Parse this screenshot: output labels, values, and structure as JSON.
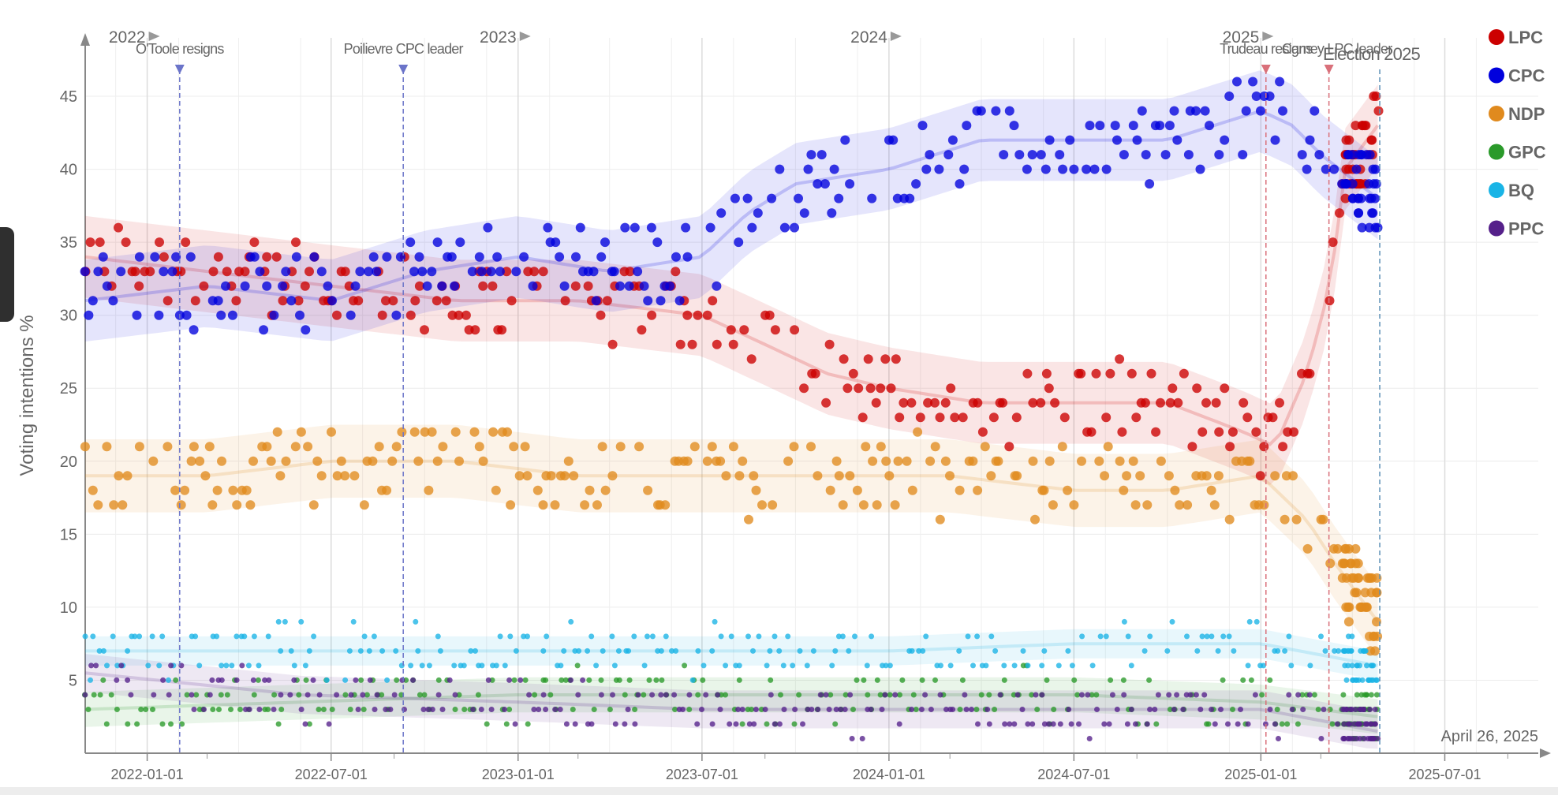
{
  "chart_data": {
    "type": "scatter",
    "ylabel": "Voting intentions %",
    "xlabel": "",
    "ylim": [
      0,
      49
    ],
    "xlim": [
      "2021-11-01",
      "2025-10-01"
    ],
    "y_ticks": [
      5,
      10,
      15,
      20,
      25,
      30,
      35,
      40,
      45
    ],
    "x_ticks": [
      "2022-01-01",
      "2022-07-01",
      "2023-01-01",
      "2023-07-01",
      "2024-01-01",
      "2024-07-01",
      "2025-01-01",
      "2025-07-01"
    ],
    "year_markers": [
      {
        "label": "2022",
        "date": "2022-01-01"
      },
      {
        "label": "2023",
        "date": "2023-01-01"
      },
      {
        "label": "2024",
        "date": "2024-01-01"
      },
      {
        "label": "2025",
        "date": "2025-01-01"
      }
    ],
    "events": [
      {
        "label": "O'Toole resigns",
        "date": "2022-02-02",
        "color": "#6b74c9"
      },
      {
        "label": "Poilievre CPC leader",
        "date": "2022-09-10",
        "color": "#6b74c9"
      },
      {
        "label": "Trudeau resigns",
        "date": "2025-01-06",
        "color": "#d9707a"
      },
      {
        "label": "Carney LPC leader",
        "date": "2025-03-09",
        "color": "#d9707a"
      },
      {
        "label": "Election 2025",
        "date": "2025-04-28",
        "color": "#5b8fb5"
      }
    ],
    "date_note": "April 26, 2025",
    "grid": true,
    "legend_position": "top-right",
    "series": [
      {
        "name": "LPC",
        "color": "#cc0000",
        "trend": [
          [
            "2021-11-01",
            34
          ],
          [
            "2022-03-01",
            33
          ],
          [
            "2022-07-01",
            32
          ],
          [
            "2022-11-01",
            31
          ],
          [
            "2023-03-01",
            31
          ],
          [
            "2023-07-01",
            30
          ],
          [
            "2023-09-01",
            28
          ],
          [
            "2023-11-01",
            26
          ],
          [
            "2024-01-01",
            25
          ],
          [
            "2024-04-01",
            24
          ],
          [
            "2024-07-01",
            24
          ],
          [
            "2024-10-01",
            24
          ],
          [
            "2024-12-15",
            22
          ],
          [
            "2025-01-15",
            21
          ],
          [
            "2025-02-15",
            26
          ],
          [
            "2025-03-10",
            32
          ],
          [
            "2025-03-25",
            40
          ],
          [
            "2025-04-26",
            43
          ]
        ]
      },
      {
        "name": "CPC",
        "color": "#0000dd",
        "trend": [
          [
            "2021-11-01",
            31
          ],
          [
            "2022-03-01",
            32
          ],
          [
            "2022-07-01",
            31
          ],
          [
            "2022-10-01",
            33
          ],
          [
            "2023-01-01",
            34
          ],
          [
            "2023-04-01",
            33
          ],
          [
            "2023-07-01",
            34
          ],
          [
            "2023-08-15",
            37
          ],
          [
            "2023-10-01",
            39
          ],
          [
            "2024-01-01",
            40
          ],
          [
            "2024-04-01",
            42
          ],
          [
            "2024-07-01",
            42
          ],
          [
            "2024-10-01",
            42
          ],
          [
            "2025-01-01",
            44
          ],
          [
            "2025-02-01",
            43
          ],
          [
            "2025-03-01",
            41
          ],
          [
            "2025-04-26",
            38
          ]
        ]
      },
      {
        "name": "NDP",
        "color": "#e08a1e",
        "trend": [
          [
            "2021-11-01",
            19
          ],
          [
            "2022-03-01",
            19
          ],
          [
            "2022-07-01",
            20
          ],
          [
            "2022-11-01",
            20
          ],
          [
            "2023-03-01",
            19
          ],
          [
            "2023-07-01",
            19
          ],
          [
            "2023-11-01",
            19
          ],
          [
            "2024-03-01",
            19
          ],
          [
            "2024-07-01",
            18
          ],
          [
            "2024-10-01",
            18
          ],
          [
            "2025-01-01",
            19
          ],
          [
            "2025-02-15",
            16
          ],
          [
            "2025-03-15",
            13
          ],
          [
            "2025-04-26",
            9
          ]
        ]
      },
      {
        "name": "GPC",
        "color": "#2a9a2a",
        "trend": [
          [
            "2021-11-01",
            3
          ],
          [
            "2022-06-01",
            3.5
          ],
          [
            "2023-01-01",
            4
          ],
          [
            "2023-07-01",
            4
          ],
          [
            "2024-01-01",
            4
          ],
          [
            "2024-07-01",
            4
          ],
          [
            "2025-01-01",
            3.5
          ],
          [
            "2025-04-26",
            2.5
          ]
        ]
      },
      {
        "name": "BQ",
        "color": "#19b4e6",
        "trend": [
          [
            "2021-11-01",
            7
          ],
          [
            "2022-06-01",
            7
          ],
          [
            "2023-01-01",
            7
          ],
          [
            "2023-07-01",
            7
          ],
          [
            "2024-01-01",
            7
          ],
          [
            "2024-07-01",
            7.5
          ],
          [
            "2025-01-01",
            7.5
          ],
          [
            "2025-04-26",
            6
          ]
        ]
      },
      {
        "name": "PPC",
        "color": "#55208a",
        "trend": [
          [
            "2021-11-01",
            5.5
          ],
          [
            "2022-06-01",
            4
          ],
          [
            "2023-01-01",
            3.5
          ],
          [
            "2023-07-01",
            3
          ],
          [
            "2024-01-01",
            3
          ],
          [
            "2024-07-01",
            3
          ],
          [
            "2025-01-01",
            3
          ],
          [
            "2025-04-26",
            1.5
          ]
        ]
      }
    ]
  }
}
